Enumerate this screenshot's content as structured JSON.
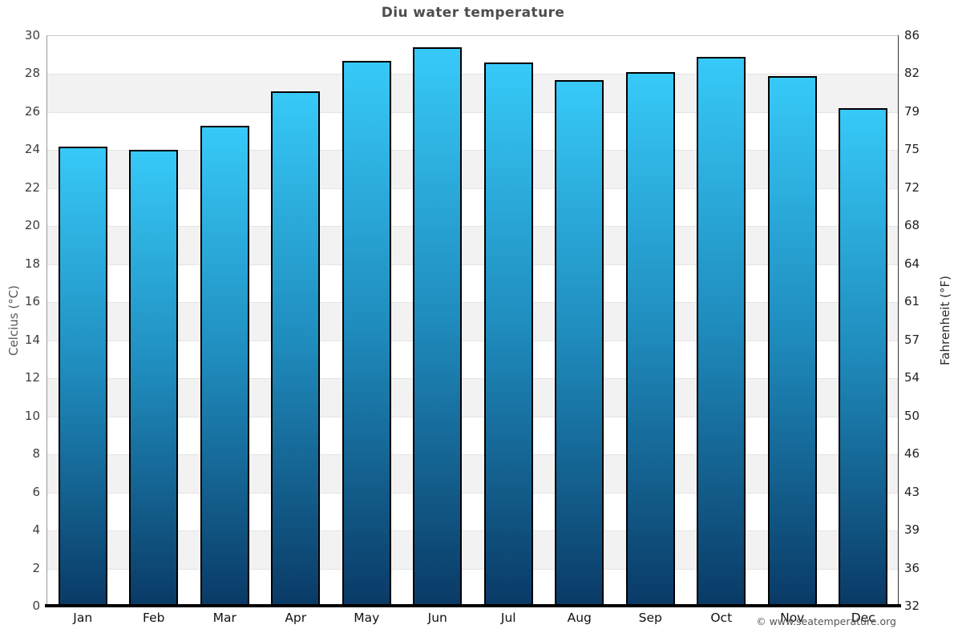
{
  "title": "Diu water temperature",
  "axes": {
    "left_label": "Celcius (°C)",
    "right_label": "Fahrenheit (°F)",
    "left_ticks": [
      "0",
      "2",
      "4",
      "6",
      "8",
      "10",
      "12",
      "14",
      "16",
      "18",
      "20",
      "22",
      "24",
      "26",
      "28",
      "30"
    ],
    "right_ticks": [
      "32",
      "36",
      "39",
      "43",
      "46",
      "50",
      "54",
      "57",
      "61",
      "64",
      "68",
      "72",
      "75",
      "79",
      "82",
      "86"
    ]
  },
  "footer": {
    "copyright": "© www.seatemperature.org"
  },
  "chart_data": {
    "type": "bar",
    "title": "Diu water temperature",
    "categories": [
      "Jan",
      "Feb",
      "Mar",
      "Apr",
      "May",
      "Jun",
      "Jul",
      "Aug",
      "Sep",
      "Oct",
      "Nov",
      "Dec"
    ],
    "values": [
      24.2,
      24.0,
      25.3,
      27.1,
      28.7,
      29.4,
      28.6,
      27.7,
      28.1,
      28.9,
      27.9,
      26.2
    ],
    "unit": "°C",
    "xlabel": "",
    "ylabel": "Celcius (°C)",
    "y2label": "Fahrenheit (°F)",
    "ylim": [
      0,
      30
    ],
    "ytick_step": 2,
    "y2_tick_values_f": [
      32,
      36,
      39,
      43,
      46,
      50,
      54,
      57,
      61,
      64,
      68,
      72,
      75,
      79,
      82,
      86
    ],
    "grid": "horizontal-bands",
    "legend": "none",
    "colors": {
      "bar_gradient_top": "#37c9f8",
      "bar_gradient_mid": "#1f8dbe",
      "bar_gradient_bottom": "#0a3a66",
      "bar_border": "#000000",
      "band_shade": "#f2f2f2",
      "band_plain": "#ffffff",
      "gridline": "#e4e4e4",
      "title_color": "#4d4d4d"
    }
  }
}
